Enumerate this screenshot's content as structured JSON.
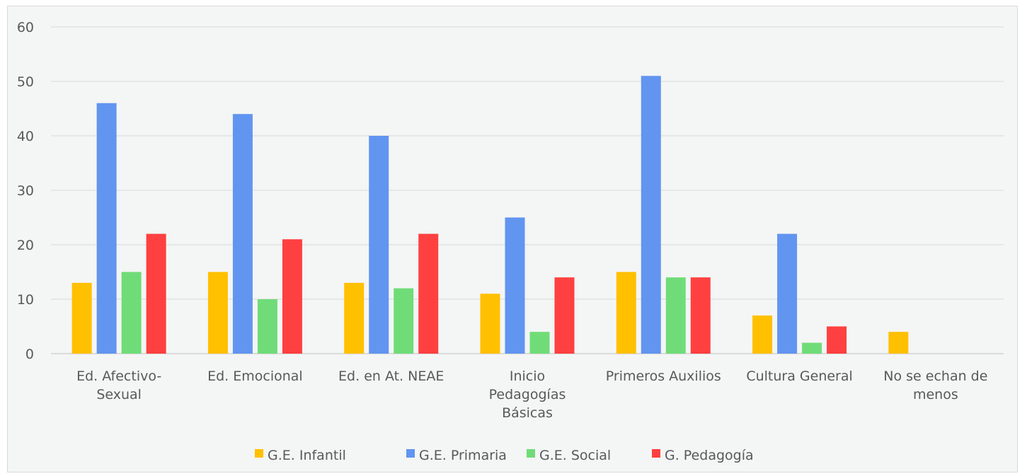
{
  "chart_data": {
    "type": "bar",
    "categories": [
      [
        "Ed. Afectivo-",
        "Sexual"
      ],
      [
        "Ed. Emocional"
      ],
      [
        "Ed. en At. NEAE"
      ],
      [
        "Inicio",
        "Pedagogías",
        "Básicas"
      ],
      [
        "Primeros Auxilios"
      ],
      [
        "Cultura General"
      ],
      [
        "No se echan de",
        "menos"
      ]
    ],
    "series": [
      {
        "name": "G.E. Infantil",
        "color": "#ffc000",
        "values": [
          13,
          15,
          13,
          11,
          15,
          7,
          4
        ]
      },
      {
        "name": "G.E. Primaria",
        "color": "#6195f0",
        "values": [
          46,
          44,
          40,
          25,
          51,
          22,
          0
        ]
      },
      {
        "name": "G.E. Social",
        "color": "#70dc78",
        "values": [
          15,
          10,
          12,
          4,
          14,
          2,
          0
        ]
      },
      {
        "name": "G. Pedagogía",
        "color": "#ff4040",
        "values": [
          22,
          21,
          22,
          14,
          14,
          5,
          0
        ]
      }
    ],
    "ylim": [
      0,
      60
    ],
    "yticks": [
      0,
      10,
      20,
      30,
      40,
      50,
      60
    ],
    "grid": true,
    "legend": "bottom"
  }
}
